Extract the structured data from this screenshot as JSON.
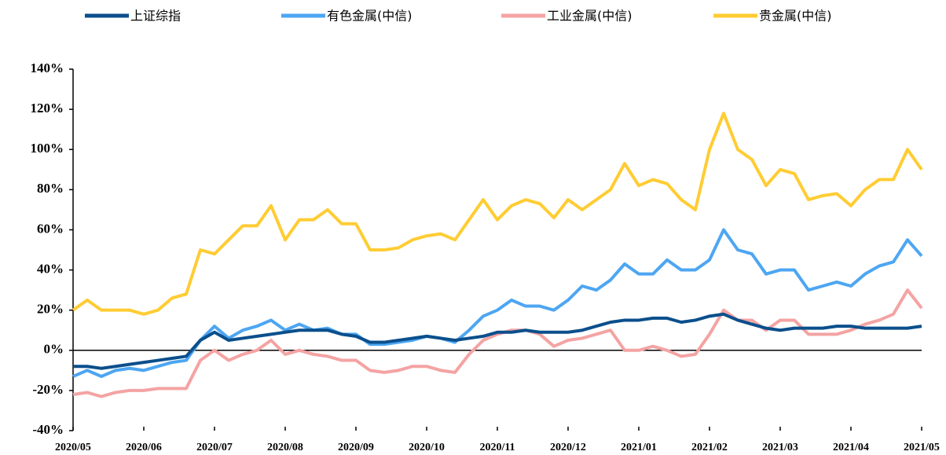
{
  "chart_data": {
    "type": "line",
    "categories": [
      "2020/05",
      null,
      null,
      null,
      null,
      "2020/06",
      null,
      null,
      null,
      null,
      "2020/07",
      null,
      null,
      null,
      null,
      "2020/08",
      null,
      null,
      null,
      null,
      "2020/09",
      null,
      null,
      null,
      null,
      "2020/10",
      null,
      null,
      null,
      null,
      "2020/11",
      null,
      null,
      null,
      null,
      "2020/12",
      null,
      null,
      null,
      null,
      "2021/01",
      null,
      null,
      null,
      null,
      "2021/02",
      null,
      null,
      null,
      null,
      "2021/03",
      null,
      null,
      null,
      null,
      "2021/04",
      null,
      null,
      null,
      null,
      "2021/05"
    ],
    "series": [
      {
        "name": "上证综指",
        "color": "#0b4f8c",
        "values": [
          -8,
          -8,
          -9,
          -8,
          -7,
          -6,
          -5,
          -4,
          -3,
          5,
          9,
          5,
          6,
          7,
          8,
          9,
          10,
          10,
          10,
          8,
          7,
          4,
          4,
          5,
          6,
          7,
          6,
          5,
          6,
          7,
          9,
          9,
          10,
          9,
          9,
          9,
          10,
          12,
          14,
          15,
          15,
          16,
          16,
          14,
          15,
          17,
          18,
          15,
          13,
          11,
          10,
          11,
          11,
          11,
          12,
          12,
          11,
          11,
          11,
          11,
          12
        ]
      },
      {
        "name": "有色金属(中信)",
        "color": "#4da6f2",
        "values": [
          -13,
          -10,
          -13,
          -10,
          -9,
          -10,
          -8,
          -6,
          -5,
          5,
          12,
          6,
          10,
          12,
          15,
          10,
          13,
          10,
          11,
          8,
          8,
          3,
          3,
          4,
          5,
          7,
          6,
          4,
          10,
          17,
          20,
          25,
          22,
          22,
          20,
          25,
          32,
          30,
          35,
          43,
          38,
          38,
          45,
          40,
          40,
          45,
          60,
          50,
          48,
          38,
          40,
          40,
          30,
          32,
          34,
          32,
          38,
          42,
          44,
          55,
          47
        ]
      },
      {
        "name": "工业金属(中信)",
        "color": "#f4a3a3",
        "values": [
          -22,
          -21,
          -23,
          -21,
          -20,
          -20,
          -19,
          -19,
          -19,
          -5,
          0,
          -5,
          -2,
          0,
          5,
          -2,
          0,
          -2,
          -3,
          -5,
          -5,
          -10,
          -11,
          -10,
          -8,
          -8,
          -10,
          -11,
          -2,
          5,
          8,
          10,
          10,
          8,
          2,
          5,
          6,
          8,
          10,
          0,
          0,
          2,
          0,
          -3,
          -2,
          8,
          20,
          15,
          15,
          10,
          15,
          15,
          8,
          8,
          8,
          10,
          13,
          15,
          18,
          30,
          21
        ]
      },
      {
        "name": "贵金属(中信)",
        "color": "#ffcc33",
        "values": [
          20,
          25,
          20,
          20,
          20,
          18,
          20,
          26,
          28,
          50,
          48,
          55,
          62,
          62,
          72,
          55,
          65,
          65,
          70,
          63,
          63,
          50,
          50,
          51,
          55,
          57,
          58,
          55,
          65,
          75,
          65,
          72,
          75,
          73,
          66,
          75,
          70,
          75,
          80,
          93,
          82,
          85,
          83,
          75,
          70,
          100,
          118,
          100,
          95,
          82,
          90,
          88,
          75,
          77,
          78,
          72,
          80,
          85,
          85,
          100,
          90
        ]
      }
    ],
    "ylim": [
      -40,
      140
    ],
    "yticks": [
      {
        "value": -40,
        "label": "-40%"
      },
      {
        "value": -20,
        "label": "-20%"
      },
      {
        "value": 0,
        "label": "0%"
      },
      {
        "value": 20,
        "label": "20%"
      },
      {
        "value": 40,
        "label": "40%"
      },
      {
        "value": 60,
        "label": "60%"
      },
      {
        "value": 80,
        "label": "80%"
      },
      {
        "value": 100,
        "label": "100%"
      },
      {
        "value": 120,
        "label": "120%"
      },
      {
        "value": 140,
        "label": "140%"
      }
    ]
  }
}
